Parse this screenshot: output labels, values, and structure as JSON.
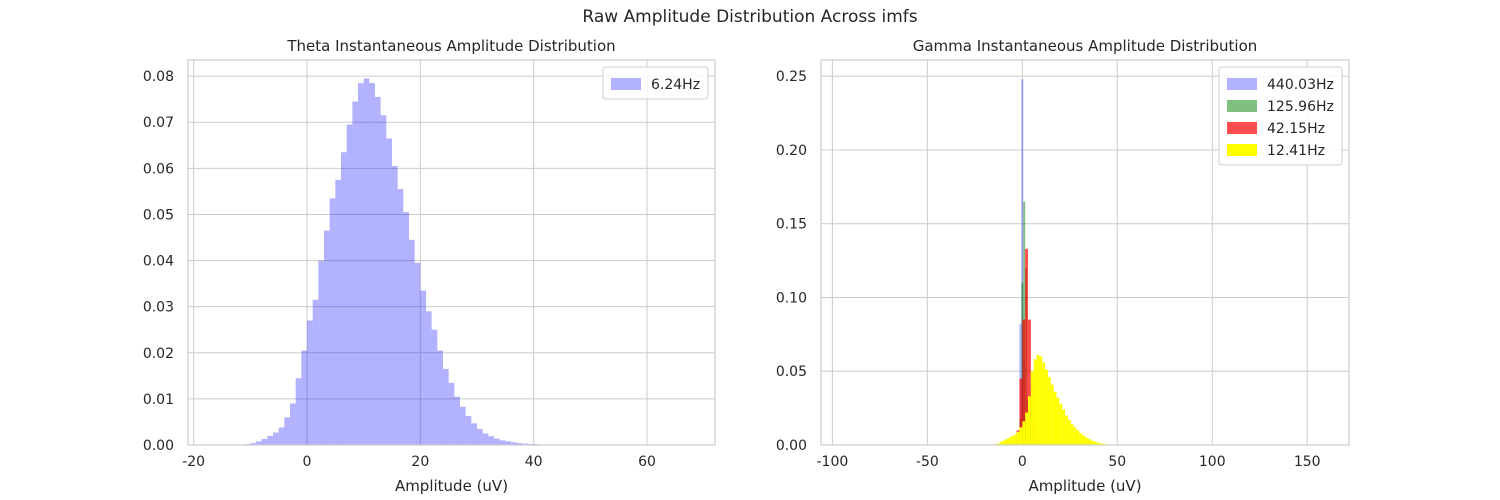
{
  "figure": {
    "title": "Raw Amplitude Distribution Across imfs"
  },
  "chart_data": [
    {
      "type": "histogram",
      "title": "Theta Instantaneous Amplitude Distribution",
      "xlabel": "Amplitude (uV)",
      "ylabel": "",
      "xlim": [
        -21,
        72
      ],
      "ylim": [
        0,
        0.0835
      ],
      "xticks": [
        -20,
        0,
        20,
        40,
        60
      ],
      "yticks": [
        0.0,
        0.01,
        0.02,
        0.03,
        0.04,
        0.05,
        0.06,
        0.07,
        0.08
      ],
      "ytick_labels": [
        "0.00",
        "0.01",
        "0.02",
        "0.03",
        "0.04",
        "0.05",
        "0.06",
        "0.07",
        "0.08"
      ],
      "grid": true,
      "legend": "top-right",
      "series": [
        {
          "name": "6.24Hz",
          "color": "#0000ff",
          "alpha": 0.3,
          "bins_start": -12.0,
          "bin_width": 1.0,
          "values": [
            0.0001,
            0.0002,
            0.0004,
            0.0008,
            0.0013,
            0.002,
            0.0027,
            0.0038,
            0.006,
            0.009,
            0.0145,
            0.0205,
            0.027,
            0.0315,
            0.04,
            0.0465,
            0.0535,
            0.0575,
            0.0635,
            0.0695,
            0.0745,
            0.0785,
            0.0795,
            0.0785,
            0.0755,
            0.0715,
            0.0665,
            0.0605,
            0.0555,
            0.0505,
            0.0445,
            0.0395,
            0.0335,
            0.029,
            0.025,
            0.0205,
            0.0165,
            0.0135,
            0.0105,
            0.0083,
            0.0063,
            0.0047,
            0.0035,
            0.0025,
            0.0019,
            0.0014,
            0.001,
            0.0008,
            0.0006,
            0.0004,
            0.0003,
            0.0002,
            0.0002,
            0.0001,
            0.0001,
            0.0001
          ]
        }
      ]
    },
    {
      "type": "histogram",
      "title": "Gamma Instantaneous Amplitude Distribution",
      "xlabel": "Amplitude (uV)",
      "ylabel": "",
      "xlim": [
        -106,
        172
      ],
      "ylim": [
        0,
        0.261
      ],
      "xticks": [
        -100,
        -50,
        0,
        50,
        100,
        150
      ],
      "yticks": [
        0.0,
        0.05,
        0.1,
        0.15,
        0.2,
        0.25
      ],
      "ytick_labels": [
        "0.00",
        "0.05",
        "0.10",
        "0.15",
        "0.20",
        "0.25"
      ],
      "grid": true,
      "legend": "top-right",
      "series": [
        {
          "name": "440.03Hz",
          "color": "#0000ff",
          "alpha": 0.3,
          "bins_start": -1.5,
          "bin_width": 1.0,
          "values": [
            0.082,
            0.248,
            0.057,
            0.004
          ]
        },
        {
          "name": "125.96Hz",
          "color": "#008000",
          "alpha": 0.5,
          "bins_start": -1.5,
          "bin_width": 1.0,
          "values": [
            0.018,
            0.11,
            0.165,
            0.12,
            0.03,
            0.004
          ]
        },
        {
          "name": "42.15Hz",
          "color": "#ff0000",
          "alpha": 0.7,
          "bins_start": -3.0,
          "bin_width": 1.5,
          "values": [
            0.01,
            0.045,
            0.085,
            0.133,
            0.085,
            0.042,
            0.015,
            0.005
          ]
        },
        {
          "name": "12.41Hz",
          "color": "#ffff00",
          "alpha": 1.0,
          "bins_start": -15.0,
          "bin_width": 1.5,
          "values": [
            0.0005,
            0.001,
            0.002,
            0.003,
            0.004,
            0.005,
            0.006,
            0.007,
            0.009,
            0.012,
            0.016,
            0.022,
            0.033,
            0.05,
            0.058,
            0.061,
            0.06,
            0.056,
            0.051,
            0.046,
            0.041,
            0.036,
            0.032,
            0.028,
            0.024,
            0.02,
            0.017,
            0.014,
            0.012,
            0.01,
            0.008,
            0.0065,
            0.005,
            0.004,
            0.003,
            0.0022,
            0.0016,
            0.0012,
            0.0008,
            0.0005
          ]
        }
      ]
    }
  ]
}
